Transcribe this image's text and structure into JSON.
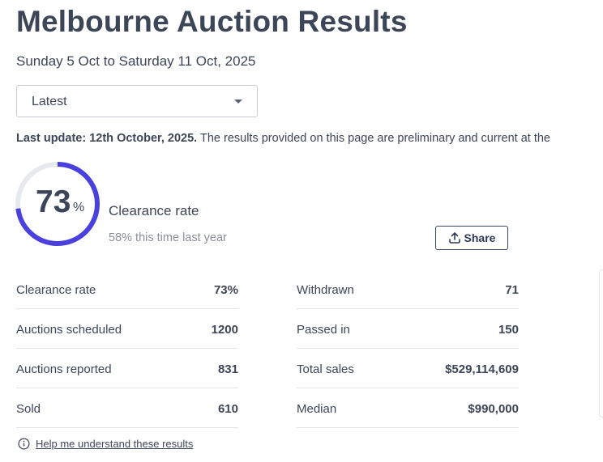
{
  "title": "Melbourne Auction Results",
  "date_range": "Sunday 5 Oct to Saturday 11 Oct, 2025",
  "dropdown": {
    "selected": "Latest"
  },
  "update": {
    "label": "Last update: 12th October, 2025.",
    "text": " The results provided on this page are preliminary and current at the"
  },
  "summary": {
    "value": "73",
    "unit": "%",
    "progress_percent": 73,
    "label": "Clearance rate",
    "last_year": "58% this time last year",
    "accent": "#4a40dd",
    "track": "#e6e9ee"
  },
  "share_label": "Share",
  "stats_left": [
    {
      "label": "Clearance rate",
      "value": "73%"
    },
    {
      "label": "Auctions scheduled",
      "value": "1200"
    },
    {
      "label": "Auctions reported",
      "value": "831"
    },
    {
      "label": "Sold",
      "value": "610"
    }
  ],
  "stats_right": [
    {
      "label": "Withdrawn",
      "value": "71"
    },
    {
      "label": "Passed in",
      "value": "150"
    },
    {
      "label": "Total sales",
      "value": "$529,114,609"
    },
    {
      "label": "Median",
      "value": "$990,000"
    }
  ],
  "help_link": "Help me understand these results"
}
